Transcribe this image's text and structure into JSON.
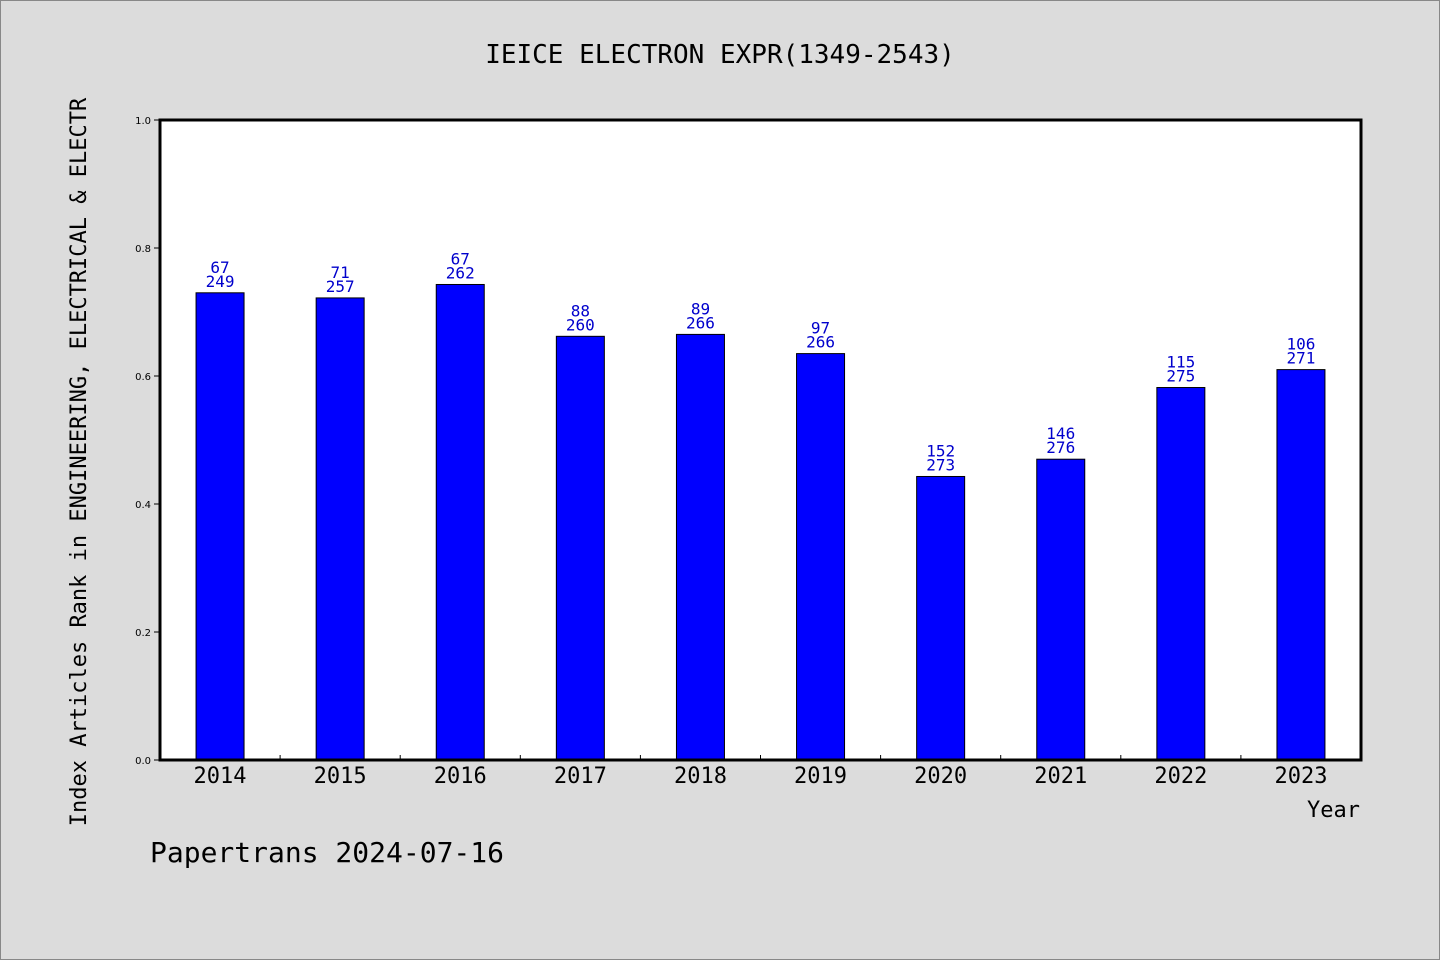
{
  "colors": {
    "bar": "#0000ff",
    "label": "#0000cc",
    "background": "#dcdcdc",
    "plot": "#ffffff"
  },
  "footer": "Papertrans 2024-07-16",
  "chart_data": {
    "type": "bar",
    "title": "IEICE ELECTRON EXPR(1349-2543)",
    "xlabel": "Year",
    "ylabel": "Index Articles Rank in ENGINEERING, ELECTRICAL & ELECTR",
    "ylim": [
      0.0,
      1.0
    ],
    "yticks": [
      "0.0",
      "0.2",
      "0.4",
      "0.6",
      "0.8",
      "1.0"
    ],
    "categories": [
      "2014",
      "2015",
      "2016",
      "2017",
      "2018",
      "2019",
      "2020",
      "2021",
      "2022",
      "2023"
    ],
    "values": [
      0.73,
      0.722,
      0.743,
      0.662,
      0.665,
      0.635,
      0.443,
      0.47,
      0.582,
      0.61
    ],
    "rank": [
      "67",
      "71",
      "67",
      "88",
      "89",
      "97",
      "152",
      "146",
      "115",
      "106"
    ],
    "total": [
      "249",
      "257",
      "262",
      "260",
      "266",
      "266",
      "273",
      "276",
      "275",
      "271"
    ],
    "grid": false,
    "legend": "none"
  }
}
